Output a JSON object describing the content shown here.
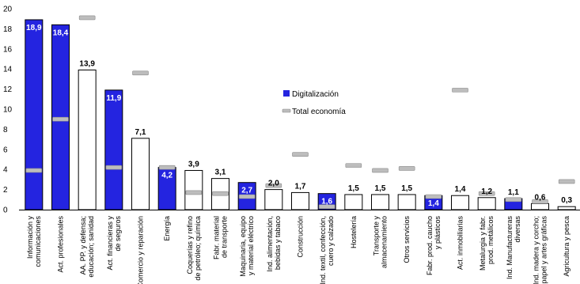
{
  "chart_data": {
    "type": "bar",
    "title": "",
    "xlabel": "",
    "ylabel": "",
    "ylim": [
      0,
      20
    ],
    "yticks": [
      0,
      2,
      4,
      6,
      8,
      10,
      12,
      14,
      16,
      18,
      20
    ],
    "grid": false,
    "legend_position": "middle-right",
    "colors": {
      "highlight_bar": "#2424e0",
      "plain_bar_fill": "#ffffff",
      "bar_outline": "#000000",
      "marker": "#bdbdbd",
      "highlight_label": "#ffffff",
      "plain_label": "#000000"
    },
    "categories": [
      "Información y comunicaciones",
      "Act. profesionales",
      "AA. PP. y defensa; educación; sanidad",
      "Act. financieras y de seguros",
      "Comercio y reparación",
      "Energía",
      "Coquerías y refino de petróleo; química",
      "Fabr. material de transporte",
      "Maquinaria, equipo y material eléctrico",
      "Ind. alimentación, bebidas y tabaco",
      "Construcción",
      "Ind. textil, confección, cuero y calzado",
      "Hostelería",
      "Transporte y almacenamiento",
      "Otros servicios",
      "Fabr. prod. caucho y plásticos",
      "Act. inmobiliarias",
      "Metalurgia y fabr. prod. metálicos",
      "Ind. Manufactureras diversas",
      "Ind. madera y corcho; papel y artes gráficas",
      "Agricultura y pesca"
    ],
    "category_label_lines": [
      [
        "Información y",
        "comunicaciones"
      ],
      [
        "Act. profesionales"
      ],
      [
        "AA. PP. y defensa;",
        "educación; sanidad"
      ],
      [
        "Act. financieras y",
        "de seguros"
      ],
      [
        "Comercio y reparación"
      ],
      [
        "Energía"
      ],
      [
        "Coquerías y refino",
        "de petróleo; química"
      ],
      [
        "Fabr. material",
        "de transporte"
      ],
      [
        "Maquinaria, equipo",
        "y material eléctrico"
      ],
      [
        "Ind. alimentación,",
        "bebidas y tabaco"
      ],
      [
        "Construcción"
      ],
      [
        "Ind. textil, confección,",
        "cuero y calzado"
      ],
      [
        "Hostelería"
      ],
      [
        "Transporte y",
        "almacenamiento"
      ],
      [
        "Otros servicios"
      ],
      [
        "Fabr. prod. caucho",
        "y plásticos"
      ],
      [
        "Act. inmobiliarias"
      ],
      [
        "Metalurgia y fabr.",
        "prod. metálicos"
      ],
      [
        "Ind. Manufactureras",
        "diversas"
      ],
      [
        "Ind. madera y corcho;",
        "papel y artes gráficas"
      ],
      [
        "Agricultura y pesca"
      ]
    ],
    "series": [
      {
        "name": "Digitalización",
        "kind": "bar",
        "values": [
          18.9,
          18.4,
          13.9,
          11.9,
          7.1,
          4.2,
          3.9,
          3.1,
          2.7,
          2.0,
          1.7,
          1.6,
          1.5,
          1.5,
          1.5,
          1.4,
          1.4,
          1.2,
          1.1,
          0.6,
          0.3
        ],
        "labels": [
          "18,9",
          "18,4",
          "13,9",
          "11,9",
          "7,1",
          "4,2",
          "3,9",
          "3,1",
          "2,7",
          "2,0",
          "1,7",
          "1,6",
          "1,5",
          "1,5",
          "1,5",
          "1,4",
          "1,4",
          "1,2",
          "1,1",
          "0,6",
          "0,3"
        ],
        "highlighted": [
          true,
          true,
          false,
          true,
          false,
          true,
          false,
          false,
          true,
          false,
          false,
          true,
          false,
          false,
          false,
          true,
          false,
          false,
          true,
          false,
          false
        ]
      },
      {
        "name": "Total economía",
        "kind": "marker",
        "values": [
          3.9,
          9.0,
          19.1,
          4.2,
          13.6,
          4.2,
          1.7,
          1.6,
          1.3,
          2.4,
          5.5,
          0.3,
          4.4,
          3.9,
          4.1,
          1.3,
          11.9,
          1.6,
          1.0,
          0.8,
          2.8
        ]
      }
    ]
  }
}
